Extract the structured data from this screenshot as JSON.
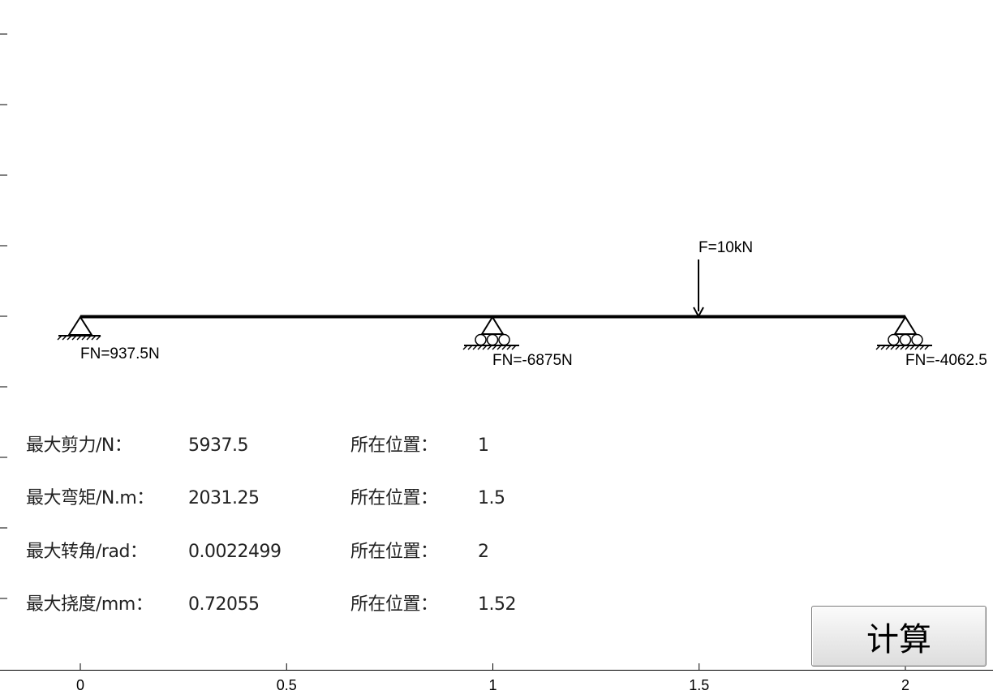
{
  "axes": {
    "x_ticks": [
      "0",
      "0.5",
      "1",
      "1.5",
      "2"
    ]
  },
  "diagram": {
    "load_label": "F=10kN",
    "supports": [
      {
        "type": "pin",
        "position": 0,
        "reaction_label": "FN=937.5N"
      },
      {
        "type": "roller",
        "position": 1,
        "reaction_label": "FN=-6875N"
      },
      {
        "type": "roller",
        "position": 2,
        "reaction_label": "FN=-4062.5"
      }
    ],
    "load_position": 1.5
  },
  "results": [
    {
      "name": "最大剪力/N：",
      "value": "5937.5",
      "pos_label": "所在位置：",
      "pos": "1"
    },
    {
      "name": "最大弯矩/N.m：",
      "value": "2031.25",
      "pos_label": "所在位置：",
      "pos": "1.5"
    },
    {
      "name": "最大转角/rad：",
      "value": "0.0022499",
      "pos_label": "所在位置：",
      "pos": "2"
    },
    {
      "name": "最大挠度/mm：",
      "value": "0.72055",
      "pos_label": "所在位置：",
      "pos": "1.52"
    }
  ],
  "button": {
    "label": "计算"
  }
}
